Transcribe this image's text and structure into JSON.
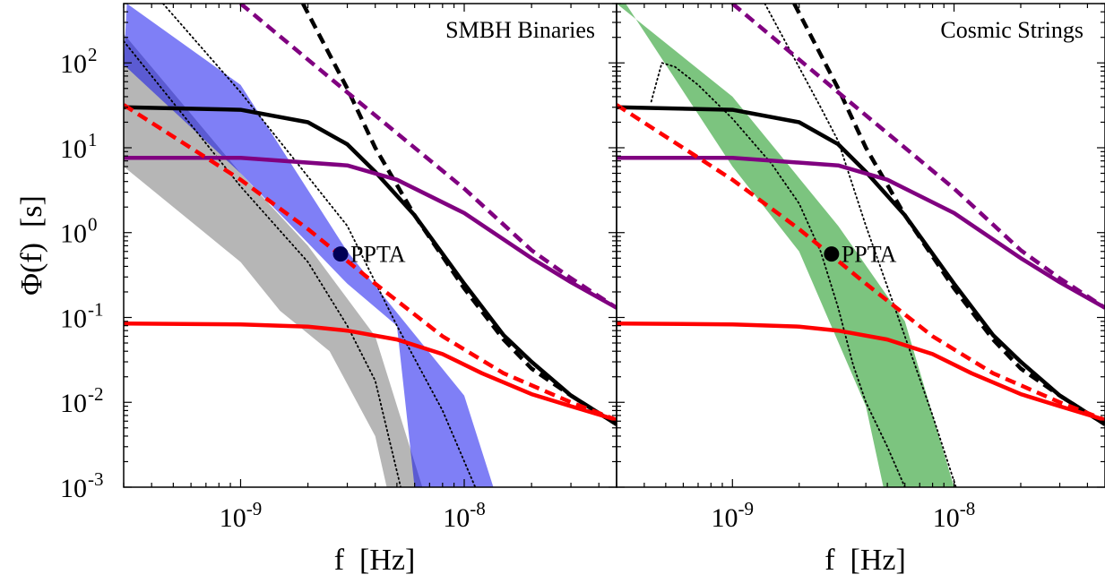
{
  "chart_data": [
    {
      "type": "line",
      "title": "SMBH Binaries",
      "xlabel": "f  [Hz]",
      "ylabel": "Φ(f)  [s]",
      "xscale": "log",
      "yscale": "log",
      "xlim": [
        3e-10,
        4.8e-08
      ],
      "ylim": [
        0.001,
        500
      ],
      "x_ticks": [
        {
          "value": 1e-09,
          "base": "10",
          "exp": "-9"
        },
        {
          "value": 1e-08,
          "base": "10",
          "exp": "-8"
        }
      ],
      "y_ticks": [
        {
          "value": 0.001,
          "base": "10",
          "exp": "-3"
        },
        {
          "value": 0.01,
          "base": "10",
          "exp": "-2"
        },
        {
          "value": 0.1,
          "base": "10",
          "exp": "-1"
        },
        {
          "value": 1,
          "base": "10",
          "exp": "0"
        },
        {
          "value": 10,
          "base": "10",
          "exp": "1"
        },
        {
          "value": 100,
          "base": "10",
          "exp": "2"
        }
      ],
      "grid": false,
      "bands": [
        {
          "color": "#9e9e9e",
          "opacity": 0.75,
          "upper": [
            [
              3e-10,
              220
            ],
            [
              6e-10,
              25
            ],
            [
              1e-09,
              5
            ],
            [
              2e-09,
              0.7
            ],
            [
              4e-09,
              0.06
            ],
            [
              6.5e-09,
              0.001
            ]
          ],
          "lower": [
            [
              3e-10,
              6
            ],
            [
              5e-10,
              2
            ],
            [
              1e-09,
              0.45
            ],
            [
              1.5e-09,
              0.12
            ],
            [
              2.5e-09,
              0.04
            ],
            [
              4e-09,
              0.004
            ],
            [
              4.5e-09,
              0.001
            ]
          ]
        },
        {
          "color": "#0000ee",
          "opacity": 0.5,
          "upper": [
            [
              3.1e-10,
              500
            ],
            [
              1e-09,
              55
            ],
            [
              3e-09,
              0.6
            ],
            [
              1e-08,
              0.012
            ],
            [
              1.35e-08,
              0.001
            ]
          ],
          "lower": [
            [
              3e-10,
              95
            ],
            [
              1e-09,
              5
            ],
            [
              3e-09,
              0.25
            ],
            [
              5e-09,
              0.08
            ],
            [
              6e-09,
              0.001
            ]
          ]
        }
      ],
      "series": [
        {
          "color": "#000000",
          "style": "dotted",
          "width": 1.8,
          "values": [
            [
              4.5e-10,
              500
            ],
            [
              1e-09,
              45
            ],
            [
              3e-09,
              1.2
            ],
            [
              5e-09,
              0.08
            ],
            [
              8e-09,
              0.008
            ],
            [
              1.12e-08,
              0.001
            ]
          ]
        },
        {
          "color": "#000000",
          "style": "dotted",
          "width": 1.8,
          "values": [
            [
              3e-10,
              180
            ],
            [
              1e-09,
              3.5
            ],
            [
              2e-09,
              0.45
            ],
            [
              3e-09,
              0.08
            ],
            [
              4e-09,
              0.018
            ],
            [
              5.2e-09,
              0.001
            ]
          ]
        },
        {
          "color": "#000000",
          "style": "solid",
          "width": 4.5,
          "values": [
            [
              3e-10,
              30
            ],
            [
              1e-09,
              28
            ],
            [
              2e-09,
              20
            ],
            [
              3e-09,
              11
            ],
            [
              4e-09,
              5.2
            ],
            [
              6e-09,
              1.6
            ],
            [
              1e-08,
              0.25
            ],
            [
              1.5e-08,
              0.062
            ],
            [
              2e-08,
              0.03
            ],
            [
              3e-08,
              0.012
            ],
            [
              4.8e-08,
              0.0055
            ]
          ]
        },
        {
          "color": "#000000",
          "style": "dashed",
          "width": 4.5,
          "values": [
            [
              1.9e-09,
              500
            ],
            [
              3e-09,
              50
            ],
            [
              4e-09,
              10
            ],
            [
              6e-09,
              1.6
            ],
            [
              1e-08,
              0.22
            ],
            [
              1.5e-08,
              0.055
            ],
            [
              2e-08,
              0.025
            ],
            [
              3e-08,
              0.012
            ],
            [
              4.8e-08,
              0.0055
            ]
          ]
        },
        {
          "color": "#800080",
          "style": "solid",
          "width": 4.5,
          "values": [
            [
              3e-10,
              7.6
            ],
            [
              1e-09,
              7.6
            ],
            [
              3e-09,
              6.2
            ],
            [
              5e-09,
              4.2
            ],
            [
              1e-08,
              1.7
            ],
            [
              2e-08,
              0.5
            ],
            [
              3e-08,
              0.26
            ],
            [
              4.8e-08,
              0.13
            ]
          ]
        },
        {
          "color": "#800080",
          "style": "dashed",
          "width": 4.5,
          "values": [
            [
              1e-09,
              500
            ],
            [
              3e-09,
              45
            ],
            [
              1e-08,
              3.3
            ],
            [
              2e-08,
              0.62
            ],
            [
              3e-08,
              0.29
            ],
            [
              4.8e-08,
              0.13
            ]
          ]
        },
        {
          "color": "#ff0000",
          "style": "solid",
          "width": 4.5,
          "values": [
            [
              3e-10,
              0.085
            ],
            [
              1e-09,
              0.083
            ],
            [
              2e-09,
              0.078
            ],
            [
              3e-09,
              0.07
            ],
            [
              5e-09,
              0.055
            ],
            [
              8e-09,
              0.037
            ],
            [
              1.2e-08,
              0.022
            ],
            [
              2e-08,
              0.0125
            ],
            [
              3e-08,
              0.009
            ],
            [
              4.8e-08,
              0.0062
            ]
          ]
        },
        {
          "color": "#ff0000",
          "style": "dashed",
          "width": 4.5,
          "values": [
            [
              3e-10,
              32
            ],
            [
              1e-09,
              4.2
            ],
            [
              2e-09,
              1.1
            ],
            [
              4e-09,
              0.25
            ],
            [
              8e-09,
              0.06
            ],
            [
              1.5e-08,
              0.022
            ],
            [
              3e-08,
              0.01
            ],
            [
              4.8e-08,
              0.0062
            ]
          ]
        }
      ],
      "points": [
        {
          "label": "PPTA",
          "x": 2.8e-09,
          "y": 0.56,
          "color": "#000055"
        }
      ]
    },
    {
      "type": "line",
      "title": "Cosmic Strings",
      "xlabel": "f  [Hz]",
      "ylabel": "",
      "xscale": "log",
      "yscale": "log",
      "xlim": [
        3e-10,
        4.8e-08
      ],
      "ylim": [
        0.001,
        500
      ],
      "x_ticks": [
        {
          "value": 1e-09,
          "base": "10",
          "exp": "-9"
        },
        {
          "value": 1e-08,
          "base": "10",
          "exp": "-8"
        }
      ],
      "y_ticks": [],
      "grid": false,
      "bands": [
        {
          "color": "#7cc47f",
          "opacity": 1,
          "upper": [
            [
              3e-10,
              500
            ],
            [
              1e-09,
              40
            ],
            [
              3e-09,
              1.2
            ],
            [
              6e-09,
              0.09
            ],
            [
              1e-08,
              0.001
            ]
          ],
          "lower": [
            [
              3.3e-10,
              500
            ],
            [
              1e-09,
              6
            ],
            [
              2e-09,
              0.6
            ],
            [
              4e-09,
              0.009
            ],
            [
              4.8e-09,
              0.001
            ]
          ]
        }
      ],
      "series": [
        {
          "color": "#000000",
          "style": "dotted",
          "width": 1.8,
          "values": [
            [
              4.3e-10,
              35
            ],
            [
              4.8e-10,
              100
            ],
            [
              5.5e-10,
              90
            ],
            [
              7e-10,
              55
            ],
            [
              1e-09,
              22
            ],
            [
              1.5e-09,
              6.5
            ],
            [
              2e-09,
              2.2
            ],
            [
              2.5e-09,
              0.6
            ],
            [
              3e-09,
              0.13
            ],
            [
              3.5e-09,
              0.028
            ],
            [
              4e-09,
              0.01
            ],
            [
              5e-09,
              0.003
            ],
            [
              6e-09,
              0.001
            ]
          ]
        },
        {
          "color": "#000000",
          "style": "dotted",
          "width": 1.8,
          "values": [
            [
              1.4e-09,
              500
            ],
            [
              2.5e-09,
              30
            ],
            [
              3e-09,
              12
            ],
            [
              4e-09,
              1.2
            ],
            [
              6e-09,
              0.06
            ],
            [
              8e-09,
              0.007
            ],
            [
              1.02e-08,
              0.001
            ]
          ]
        },
        {
          "color": "#000000",
          "style": "solid",
          "width": 4.5,
          "values": [
            [
              3e-10,
              30
            ],
            [
              1e-09,
              28
            ],
            [
              2e-09,
              20
            ],
            [
              3e-09,
              11
            ],
            [
              4e-09,
              5.2
            ],
            [
              6e-09,
              1.6
            ],
            [
              1e-08,
              0.25
            ],
            [
              1.5e-08,
              0.062
            ],
            [
              2e-08,
              0.03
            ],
            [
              3e-08,
              0.012
            ],
            [
              4.8e-08,
              0.0055
            ]
          ]
        },
        {
          "color": "#000000",
          "style": "dashed",
          "width": 4.5,
          "values": [
            [
              1.9e-09,
              500
            ],
            [
              3e-09,
              50
            ],
            [
              4e-09,
              10
            ],
            [
              6e-09,
              1.6
            ],
            [
              1e-08,
              0.22
            ],
            [
              1.5e-08,
              0.055
            ],
            [
              2e-08,
              0.025
            ],
            [
              3e-08,
              0.012
            ],
            [
              4.8e-08,
              0.0055
            ]
          ]
        },
        {
          "color": "#800080",
          "style": "solid",
          "width": 4.5,
          "values": [
            [
              3e-10,
              7.6
            ],
            [
              1e-09,
              7.6
            ],
            [
              3e-09,
              6.2
            ],
            [
              5e-09,
              4.2
            ],
            [
              1e-08,
              1.7
            ],
            [
              2e-08,
              0.5
            ],
            [
              3e-08,
              0.26
            ],
            [
              4.8e-08,
              0.13
            ]
          ]
        },
        {
          "color": "#800080",
          "style": "dashed",
          "width": 4.5,
          "values": [
            [
              1e-09,
              500
            ],
            [
              3e-09,
              45
            ],
            [
              1e-08,
              3.3
            ],
            [
              2e-08,
              0.62
            ],
            [
              3e-08,
              0.29
            ],
            [
              4.8e-08,
              0.13
            ]
          ]
        },
        {
          "color": "#ff0000",
          "style": "solid",
          "width": 4.5,
          "values": [
            [
              3e-10,
              0.085
            ],
            [
              1e-09,
              0.083
            ],
            [
              2e-09,
              0.078
            ],
            [
              3e-09,
              0.07
            ],
            [
              5e-09,
              0.055
            ],
            [
              8e-09,
              0.037
            ],
            [
              1.2e-08,
              0.022
            ],
            [
              2e-08,
              0.0125
            ],
            [
              3e-08,
              0.009
            ],
            [
              4.8e-08,
              0.0062
            ]
          ]
        },
        {
          "color": "#ff0000",
          "style": "dashed",
          "width": 4.5,
          "values": [
            [
              3e-10,
              32
            ],
            [
              1e-09,
              4.2
            ],
            [
              2e-09,
              1.1
            ],
            [
              4e-09,
              0.25
            ],
            [
              8e-09,
              0.06
            ],
            [
              1.5e-08,
              0.022
            ],
            [
              3e-08,
              0.01
            ],
            [
              4.8e-08,
              0.0062
            ]
          ]
        }
      ],
      "points": [
        {
          "label": "PPTA",
          "x": 2.8e-09,
          "y": 0.56,
          "color": "#000000"
        }
      ]
    }
  ]
}
